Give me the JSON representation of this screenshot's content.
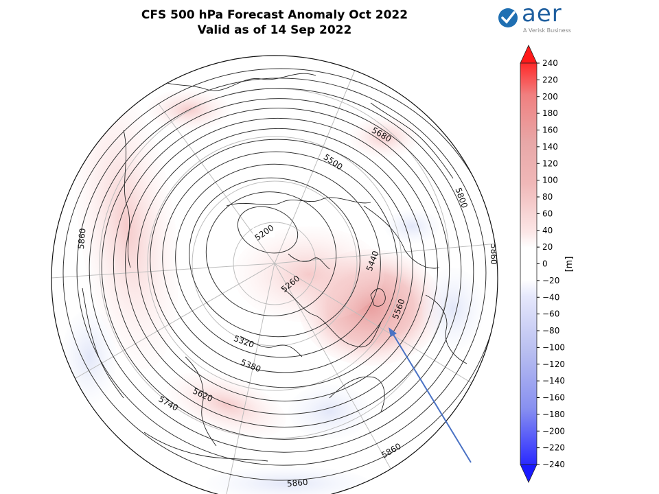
{
  "title_line1": "CFS 500 hPa Forecast Anomaly Oct 2022",
  "title_line2": "Valid as of 14 Sep 2022",
  "logo": {
    "text": "aer",
    "subtitle": "A Verisk Business",
    "icon": "aer-logo-icon"
  },
  "colorbar": {
    "label": "[m]",
    "ticks": [
      "240",
      "220",
      "200",
      "180",
      "160",
      "140",
      "120",
      "100",
      "80",
      "60",
      "40",
      "20",
      "0",
      "-20",
      "-40",
      "-60",
      "-80",
      "-100",
      "-120",
      "-140",
      "-160",
      "-180",
      "-200",
      "-220",
      "-240"
    ],
    "positive_color": "#e03030",
    "negative_color": "#3030e0"
  },
  "contour_labels": [
    "5200",
    "5260",
    "5320",
    "5380",
    "5440",
    "5500",
    "5560",
    "5620",
    "5680",
    "5740",
    "5800",
    "5860",
    "5860",
    "5860",
    "5860"
  ],
  "annotation": {
    "type": "arrow",
    "color": "#4a72c4"
  }
}
